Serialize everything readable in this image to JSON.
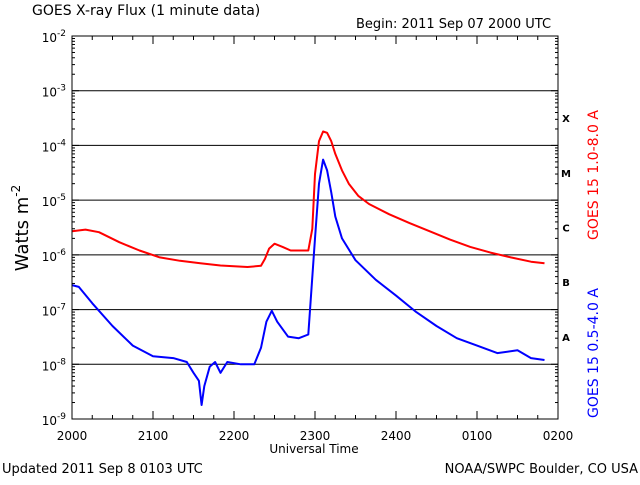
{
  "header": {
    "title": "GOES X-ray Flux (1 minute data)",
    "begin": "Begin: 2011 Sep 07 2000 UTC"
  },
  "footer": {
    "updated": "Updated 2011 Sep  8 0103 UTC",
    "source": "NOAA/SWPC Boulder, CO USA"
  },
  "colors": {
    "long_channel": "#ff0000",
    "short_channel": "#0000ff",
    "grid": "#000000"
  },
  "chart_data": {
    "type": "line",
    "title": "GOES X-ray Flux (1 minute data)",
    "xlabel": "Universal Time",
    "ylabel": "Watts m-2",
    "yscale": "log",
    "ylim": [
      1e-09,
      0.01
    ],
    "xlim": [
      "2000",
      "0200"
    ],
    "x_ticks": [
      "2000",
      "2100",
      "2200",
      "2300",
      "2400",
      "0100",
      "0200"
    ],
    "y_ticks": [
      "10-9",
      "10-8",
      "10-7",
      "10-6",
      "10-5",
      "10-4",
      "10-3",
      "10-2"
    ],
    "class_labels": [
      {
        "label": "X",
        "level": 0.0001
      },
      {
        "label": "M",
        "level": 1e-05
      },
      {
        "label": "C",
        "level": 1e-06
      },
      {
        "label": "B",
        "level": 1e-07
      },
      {
        "label": "A",
        "level": 1e-08
      }
    ],
    "grid": "horizontal lines at decades 1e-8 through 1e-3",
    "series": [
      {
        "name": "GOES 15 1.0-8.0 A",
        "color": "#ff0000",
        "points": [
          [
            "2000",
            2.7e-06
          ],
          [
            "2010",
            2.9e-06
          ],
          [
            "2020",
            2.6e-06
          ],
          [
            "2035",
            1.7e-06
          ],
          [
            "2050",
            1.2e-06
          ],
          [
            "2105",
            9e-07
          ],
          [
            "2120",
            7.8e-07
          ],
          [
            "2135",
            7e-07
          ],
          [
            "2150",
            6.4e-07
          ],
          [
            "2210",
            6e-07
          ],
          [
            "2220",
            6.3e-07
          ],
          [
            "2223",
            8.5e-07
          ],
          [
            "2226",
            1.3e-06
          ],
          [
            "2230",
            1.6e-06
          ],
          [
            "2236",
            1.4e-06
          ],
          [
            "2242",
            1.2e-06
          ],
          [
            "2255",
            1.2e-06
          ],
          [
            "2258",
            3e-06
          ],
          [
            "2300",
            3e-05
          ],
          [
            "2303",
            0.00012
          ],
          [
            "2306",
            0.00018
          ],
          [
            "2309",
            0.00017
          ],
          [
            "2312",
            0.00012
          ],
          [
            "2315",
            7e-05
          ],
          [
            "2320",
            3.5e-05
          ],
          [
            "2325",
            2e-05
          ],
          [
            "2332",
            1.2e-05
          ],
          [
            "2340",
            8.5e-06
          ],
          [
            "2355",
            5.5e-06
          ],
          [
            "0010",
            3.8e-06
          ],
          [
            "0025",
            2.7e-06
          ],
          [
            "0040",
            1.9e-06
          ],
          [
            "0055",
            1.4e-06
          ],
          [
            "0110",
            1.1e-06
          ],
          [
            "0125",
            9e-07
          ],
          [
            "0140",
            7.5e-07
          ],
          [
            "0150",
            7e-07
          ]
        ]
      },
      {
        "name": "GOES 15 0.5-4.0 A",
        "color": "#0000ff",
        "points": [
          [
            "2000",
            2.8e-07
          ],
          [
            "2005",
            2.6e-07
          ],
          [
            "2015",
            1.3e-07
          ],
          [
            "2030",
            5e-08
          ],
          [
            "2045",
            2.2e-08
          ],
          [
            "2100",
            1.4e-08
          ],
          [
            "2115",
            1.3e-08
          ],
          [
            "2125",
            1.1e-08
          ],
          [
            "2130",
            7e-09
          ],
          [
            "2134",
            5e-09
          ],
          [
            "2136",
            1.8e-09
          ],
          [
            "2138",
            4e-09
          ],
          [
            "2142",
            9e-09
          ],
          [
            "2146",
            1.1e-08
          ],
          [
            "2150",
            7e-09
          ],
          [
            "2155",
            1.1e-08
          ],
          [
            "2205",
            1e-08
          ],
          [
            "2215",
            1e-08
          ],
          [
            "2220",
            2e-08
          ],
          [
            "2224",
            6e-08
          ],
          [
            "2228",
            9.5e-08
          ],
          [
            "2232",
            6e-08
          ],
          [
            "2240",
            3.2e-08
          ],
          [
            "2248",
            3e-08
          ],
          [
            "2255",
            3.5e-08
          ],
          [
            "2300",
            2e-06
          ],
          [
            "2303",
            2e-05
          ],
          [
            "2306",
            5.5e-05
          ],
          [
            "2309",
            3.5e-05
          ],
          [
            "2312",
            1.4e-05
          ],
          [
            "2315",
            5e-06
          ],
          [
            "2320",
            2e-06
          ],
          [
            "2330",
            8e-07
          ],
          [
            "2345",
            3.5e-07
          ],
          [
            "2400",
            1.8e-07
          ],
          [
            "0015",
            9e-08
          ],
          [
            "0030",
            5e-08
          ],
          [
            "0045",
            3e-08
          ],
          [
            "0100",
            2.2e-08
          ],
          [
            "0115",
            1.6e-08
          ],
          [
            "0130",
            1.8e-08
          ],
          [
            "0140",
            1.3e-08
          ],
          [
            "0150",
            1.2e-08
          ]
        ]
      }
    ]
  }
}
